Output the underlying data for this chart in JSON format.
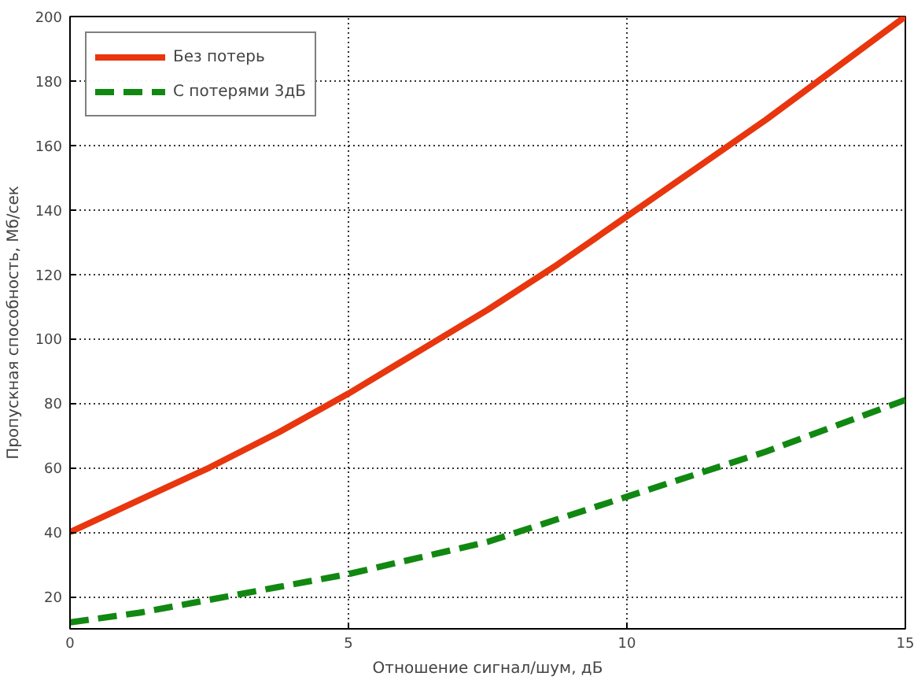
{
  "chart_data": {
    "type": "line",
    "xlabel": "Отношение сигнал/шум, дБ",
    "ylabel": "Пропускная способность, Мб/сек",
    "x": [
      0,
      1.25,
      2.5,
      3.75,
      5,
      6.25,
      7.5,
      8.75,
      10,
      11.25,
      12.5,
      13.75,
      15
    ],
    "series": [
      {
        "name": "Без потерь",
        "color": "#e8360e",
        "line_style": "solid",
        "values": [
          40,
          50,
          60,
          71,
          83,
          96,
          109,
          123,
          138,
          153,
          168,
          184,
          200
        ]
      },
      {
        "name": "С потерями 3дБ",
        "color": "#118811",
        "line_style": "dashed",
        "values": [
          12,
          15,
          19,
          23,
          27,
          32,
          37,
          44,
          51,
          58,
          65,
          73,
          81
        ]
      }
    ],
    "xlim": [
      0,
      15
    ],
    "ylim": [
      10,
      200
    ],
    "xticks": [
      0,
      5,
      10,
      15
    ],
    "yticks": [
      20,
      40,
      60,
      80,
      100,
      120,
      140,
      160,
      180,
      200
    ],
    "grid": true,
    "legend": "top left",
    "marker": "none"
  }
}
